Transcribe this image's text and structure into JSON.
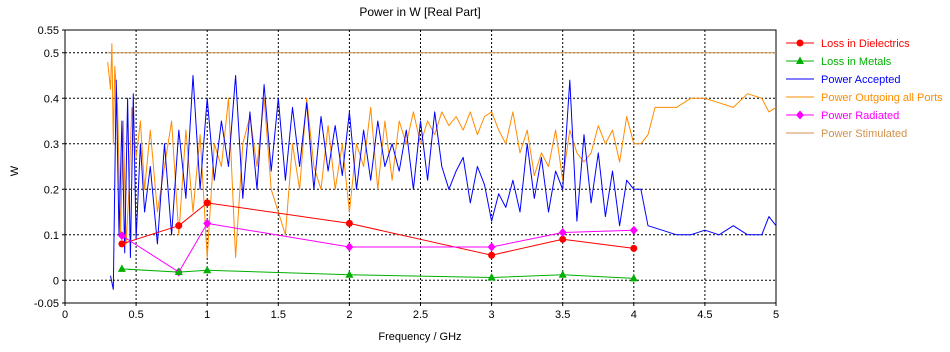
{
  "chart_data": {
    "type": "line",
    "title": "Power in W [Real Part]",
    "xlabel": "Frequency / GHz",
    "ylabel": "W",
    "xlim": [
      0,
      5
    ],
    "ylim": [
      -0.05,
      0.55
    ],
    "x_ticks": [
      "0",
      "0.5",
      "1",
      "1.5",
      "2",
      "2.5",
      "3",
      "3.5",
      "4",
      "4.5",
      "5"
    ],
    "y_ticks": [
      "-0.05",
      "0",
      "0.1",
      "0.2",
      "0.3",
      "0.4",
      "0.5",
      "0.55"
    ],
    "grid": true,
    "legend_position": "right",
    "series": [
      {
        "name": "Loss in Dielectrics",
        "color": "#ff0000",
        "marker": "circle",
        "x": [
          0.4,
          0.8,
          1.0,
          2.0,
          3.0,
          3.5,
          4.0
        ],
        "y": [
          0.08,
          0.12,
          0.17,
          0.125,
          0.055,
          0.09,
          0.07
        ]
      },
      {
        "name": "Loss in Metals",
        "color": "#00b000",
        "marker": "triangle",
        "x": [
          0.4,
          0.8,
          1.0,
          2.0,
          3.0,
          3.5,
          4.0
        ],
        "y": [
          0.025,
          0.018,
          0.022,
          0.012,
          0.006,
          0.012,
          0.004
        ]
      },
      {
        "name": "Power Accepted",
        "color": "#0000ff",
        "marker": "none",
        "x": [
          0.32,
          0.34,
          0.36,
          0.38,
          0.4,
          0.42,
          0.44,
          0.46,
          0.48,
          0.5,
          0.53,
          0.56,
          0.6,
          0.65,
          0.7,
          0.75,
          0.8,
          0.85,
          0.9,
          0.95,
          1.0,
          1.05,
          1.1,
          1.15,
          1.2,
          1.25,
          1.3,
          1.35,
          1.4,
          1.45,
          1.5,
          1.55,
          1.6,
          1.65,
          1.7,
          1.75,
          1.8,
          1.85,
          1.9,
          1.95,
          2.0,
          2.05,
          2.1,
          2.15,
          2.2,
          2.25,
          2.3,
          2.35,
          2.4,
          2.45,
          2.5,
          2.55,
          2.6,
          2.65,
          2.7,
          2.75,
          2.8,
          2.85,
          2.9,
          2.95,
          3.0,
          3.05,
          3.1,
          3.15,
          3.2,
          3.25,
          3.3,
          3.35,
          3.4,
          3.45,
          3.5,
          3.55,
          3.6,
          3.65,
          3.7,
          3.75,
          3.8,
          3.85,
          3.9,
          3.95,
          4.0,
          4.05,
          4.1,
          4.2,
          4.3,
          4.4,
          4.5,
          4.6,
          4.7,
          4.8,
          4.9,
          4.95,
          5.0
        ],
        "y": [
          0.01,
          -0.02,
          0.44,
          0.1,
          0.35,
          0.06,
          0.4,
          0.05,
          0.41,
          0.09,
          0.3,
          0.15,
          0.25,
          0.08,
          0.3,
          0.1,
          0.33,
          0.18,
          0.45,
          0.2,
          0.4,
          0.22,
          0.35,
          0.25,
          0.45,
          0.18,
          0.37,
          0.2,
          0.43,
          0.24,
          0.4,
          0.22,
          0.38,
          0.25,
          0.39,
          0.2,
          0.36,
          0.24,
          0.34,
          0.23,
          0.37,
          0.2,
          0.33,
          0.22,
          0.35,
          0.25,
          0.3,
          0.24,
          0.33,
          0.2,
          0.35,
          0.22,
          0.37,
          0.25,
          0.2,
          0.24,
          0.27,
          0.17,
          0.25,
          0.21,
          0.13,
          0.19,
          0.16,
          0.22,
          0.15,
          0.3,
          0.18,
          0.27,
          0.15,
          0.24,
          0.2,
          0.44,
          0.13,
          0.32,
          0.17,
          0.28,
          0.14,
          0.24,
          0.12,
          0.22,
          0.2,
          0.2,
          0.12,
          0.11,
          0.1,
          0.1,
          0.11,
          0.1,
          0.12,
          0.1,
          0.1,
          0.14,
          0.12
        ]
      },
      {
        "name": "Power Outgoing all Ports",
        "color": "#ff8c00",
        "marker": "none",
        "x": [
          0.3,
          0.32,
          0.33,
          0.34,
          0.35,
          0.37,
          0.39,
          0.41,
          0.43,
          0.45,
          0.47,
          0.5,
          0.53,
          0.56,
          0.6,
          0.65,
          0.7,
          0.75,
          0.8,
          0.85,
          0.9,
          0.95,
          1.0,
          1.05,
          1.1,
          1.15,
          1.2,
          1.25,
          1.3,
          1.35,
          1.4,
          1.45,
          1.5,
          1.55,
          1.6,
          1.65,
          1.7,
          1.75,
          1.8,
          1.85,
          1.9,
          1.95,
          2.0,
          2.05,
          2.1,
          2.15,
          2.2,
          2.25,
          2.3,
          2.35,
          2.4,
          2.45,
          2.5,
          2.55,
          2.6,
          2.65,
          2.7,
          2.75,
          2.8,
          2.85,
          2.9,
          2.95,
          3.0,
          3.05,
          3.1,
          3.15,
          3.2,
          3.25,
          3.3,
          3.35,
          3.4,
          3.45,
          3.5,
          3.55,
          3.6,
          3.65,
          3.7,
          3.75,
          3.8,
          3.85,
          3.9,
          3.95,
          4.0,
          4.05,
          4.1,
          4.15,
          4.2,
          4.3,
          4.4,
          4.5,
          4.6,
          4.7,
          4.8,
          4.9,
          4.95,
          5.0
        ],
        "y": [
          0.48,
          0.42,
          0.52,
          0.3,
          0.47,
          0.38,
          0.1,
          0.35,
          0.08,
          0.2,
          0.38,
          0.27,
          0.35,
          0.2,
          0.33,
          0.15,
          0.25,
          0.35,
          0.1,
          0.33,
          0.15,
          0.32,
          0.05,
          0.3,
          0.25,
          0.4,
          0.05,
          0.3,
          0.36,
          0.25,
          0.4,
          0.2,
          0.15,
          0.1,
          0.3,
          0.2,
          0.4,
          0.25,
          0.2,
          0.34,
          0.2,
          0.3,
          0.15,
          0.3,
          0.25,
          0.38,
          0.2,
          0.35,
          0.22,
          0.35,
          0.3,
          0.37,
          0.3,
          0.35,
          0.32,
          0.37,
          0.34,
          0.36,
          0.33,
          0.37,
          0.32,
          0.36,
          0.37,
          0.33,
          0.3,
          0.37,
          0.28,
          0.33,
          0.23,
          0.28,
          0.25,
          0.33,
          0.22,
          0.33,
          0.28,
          0.26,
          0.28,
          0.34,
          0.3,
          0.33,
          0.26,
          0.36,
          0.3,
          0.3,
          0.32,
          0.38,
          0.38,
          0.38,
          0.4,
          0.4,
          0.39,
          0.38,
          0.41,
          0.4,
          0.37,
          0.38
        ]
      },
      {
        "name": "Power Radiated",
        "color": "#ff00ff",
        "marker": "diamond",
        "x": [
          0.4,
          0.8,
          1.0,
          2.0,
          3.0,
          3.5,
          4.0
        ],
        "y": [
          0.098,
          0.018,
          0.125,
          0.073,
          0.073,
          0.105,
          0.11
        ]
      },
      {
        "name": "Power Stimulated",
        "color": "#d2914b",
        "marker": "none",
        "x": [
          0.3,
          5.0
        ],
        "y": [
          0.5,
          0.5
        ]
      }
    ]
  }
}
